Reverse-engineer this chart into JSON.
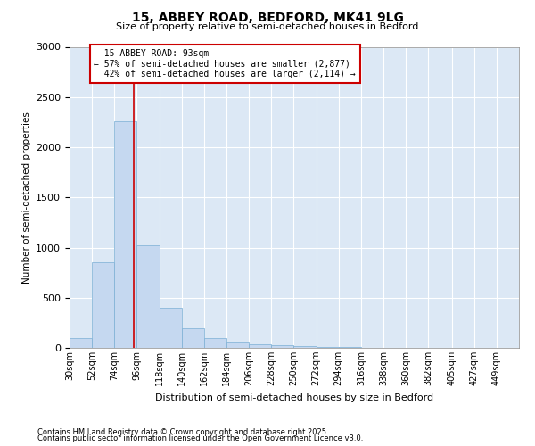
{
  "title1": "15, ABBEY ROAD, BEDFORD, MK41 9LG",
  "title2": "Size of property relative to semi-detached houses in Bedford",
  "xlabel": "Distribution of semi-detached houses by size in Bedford",
  "ylabel": "Number of semi-detached properties",
  "footnote1": "Contains HM Land Registry data © Crown copyright and database right 2025.",
  "footnote2": "Contains public sector information licensed under the Open Government Licence v3.0.",
  "property_size": 93,
  "property_label": "15 ABBEY ROAD: 93sqm",
  "pct_smaller": 57,
  "pct_larger": 42,
  "n_smaller": 2877,
  "n_larger": 2114,
  "bar_color": "#c5d8f0",
  "bar_edge_color": "#7bafd4",
  "line_color": "#cc0000",
  "annotation_box_color": "#cc0000",
  "bg_color": "#dce8f5",
  "grid_color": "#ffffff",
  "bins": [
    30,
    52,
    74,
    96,
    118,
    140,
    162,
    184,
    206,
    228,
    250,
    272,
    294,
    316,
    338,
    360,
    382,
    405,
    427,
    449,
    471
  ],
  "counts": [
    100,
    855,
    2255,
    1020,
    400,
    200,
    100,
    60,
    40,
    30,
    15,
    10,
    5,
    2,
    2,
    1,
    1,
    1,
    1,
    0
  ],
  "ylim": [
    0,
    3000
  ],
  "yticks": [
    0,
    500,
    1000,
    1500,
    2000,
    2500,
    3000
  ]
}
